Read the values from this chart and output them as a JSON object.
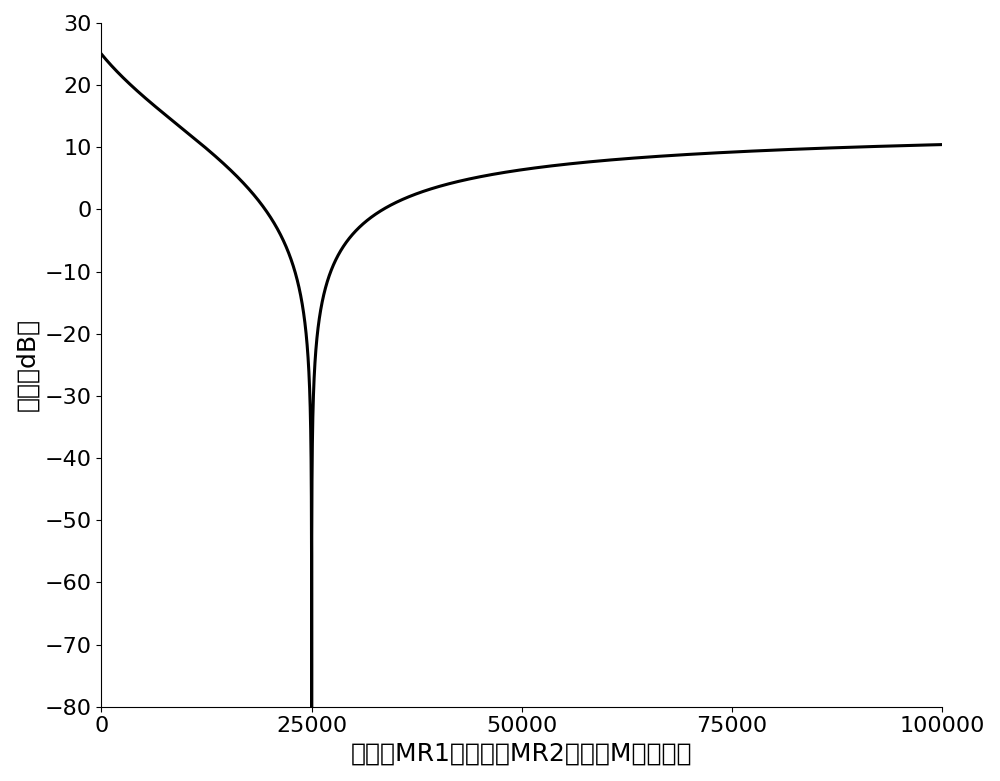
{
  "xlabel": "忆阻器MR1和忆阻器MR2的阻值M（欧姆）",
  "ylabel": "增益（dB）",
  "xlim": [
    0,
    100000
  ],
  "ylim": [
    -80,
    30
  ],
  "xticks": [
    0,
    25000,
    50000,
    75000,
    100000
  ],
  "yticks": [
    -80,
    -70,
    -60,
    -50,
    -40,
    -30,
    -20,
    -10,
    0,
    10,
    20,
    30
  ],
  "line_color": "#000000",
  "line_width": 2.2,
  "K": 4.73,
  "M_null": 25000,
  "C": 6648,
  "font_size_label": 18,
  "font_size_tick": 16,
  "background_color": "#ffffff"
}
